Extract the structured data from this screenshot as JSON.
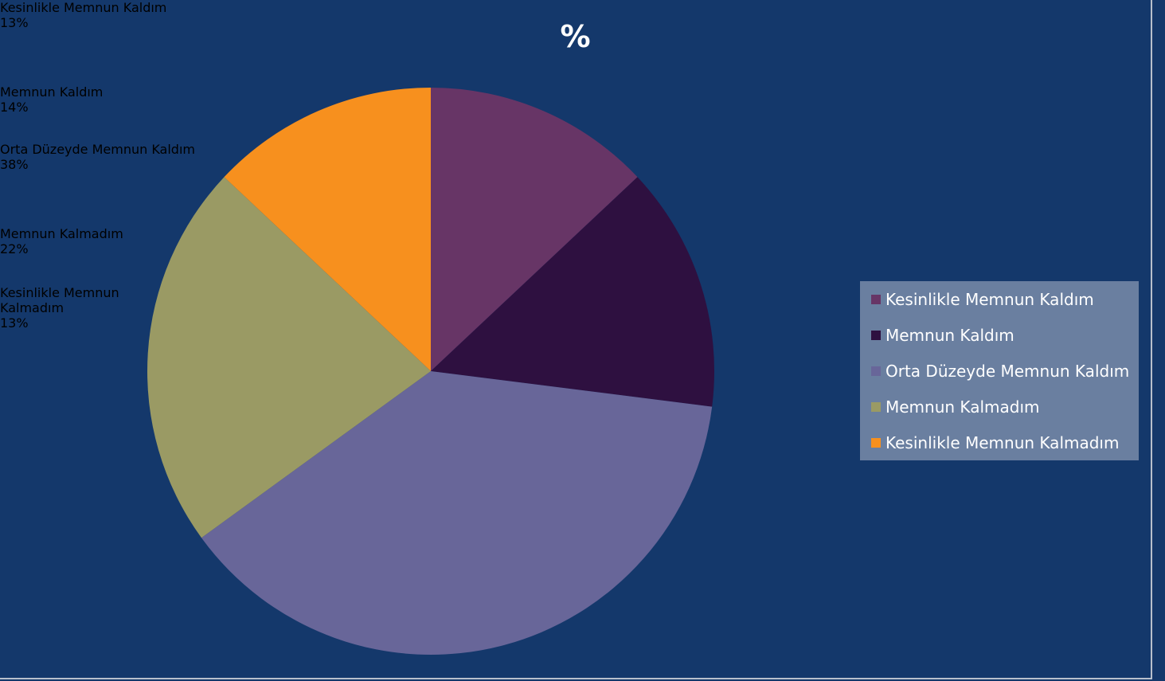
{
  "chart_data": {
    "type": "pie",
    "title": "%",
    "categories": [
      "Kesinlikle Memnun Kaldım",
      "Memnun Kaldım",
      "Orta Düzeyde Memnun Kaldım",
      "Memnun Kalmadım",
      "Kesinlikle Memnun Kalmadım"
    ],
    "values": [
      13,
      14,
      38,
      22,
      13
    ],
    "value_labels": [
      "13%",
      "14%",
      "38%",
      "22%",
      "13%"
    ],
    "colors": [
      "#673566",
      "#2e1040",
      "#686699",
      "#9a9a64",
      "#f7901e"
    ],
    "legend": "right"
  }
}
